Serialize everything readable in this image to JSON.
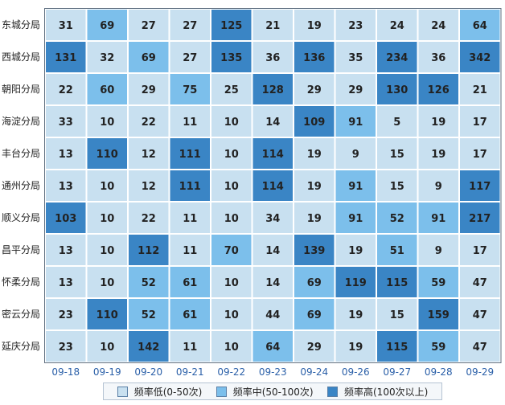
{
  "chart_data": {
    "type": "heatmap",
    "rows": [
      "东城分局",
      "西城分局",
      "朝阳分局",
      "海淀分局",
      "丰台分局",
      "通州分局",
      "顺义分局",
      "昌平分局",
      "怀柔分局",
      "密云分局",
      "延庆分局"
    ],
    "columns": [
      "09-18",
      "09-19",
      "09-20",
      "09-21",
      "09-22",
      "09-23",
      "09-24",
      "09-26",
      "09-27",
      "09-28",
      "09-29"
    ],
    "values": [
      [
        31,
        69,
        27,
        27,
        125,
        21,
        19,
        23,
        24,
        24,
        64
      ],
      [
        131,
        32,
        69,
        27,
        135,
        36,
        136,
        35,
        234,
        36,
        342
      ],
      [
        22,
        60,
        29,
        75,
        25,
        128,
        29,
        29,
        130,
        126,
        21
      ],
      [
        33,
        10,
        22,
        11,
        10,
        14,
        109,
        91,
        5,
        19,
        17
      ],
      [
        13,
        110,
        12,
        111,
        10,
        114,
        19,
        9,
        15,
        19,
        17
      ],
      [
        13,
        10,
        12,
        111,
        10,
        114,
        19,
        91,
        15,
        9,
        117
      ],
      [
        103,
        10,
        22,
        11,
        10,
        34,
        19,
        91,
        52,
        91,
        217
      ],
      [
        13,
        10,
        112,
        11,
        70,
        14,
        139,
        19,
        51,
        9,
        17
      ],
      [
        13,
        10,
        52,
        61,
        10,
        14,
        69,
        119,
        115,
        59,
        47
      ],
      [
        23,
        110,
        52,
        61,
        10,
        44,
        69,
        19,
        15,
        159,
        47
      ],
      [
        23,
        10,
        142,
        11,
        10,
        64,
        29,
        19,
        115,
        59,
        47
      ]
    ],
    "legend": [
      {
        "label": "频率低(0-50次)",
        "color": "#c8e0f0"
      },
      {
        "label": "频率中(50-100次)",
        "color": "#7cbfeb"
      },
      {
        "label": "频率高(100次以上)",
        "color": "#3a85c5"
      }
    ],
    "thresholds": [
      50,
      100
    ],
    "legend_position": "bottom",
    "grid": true
  }
}
